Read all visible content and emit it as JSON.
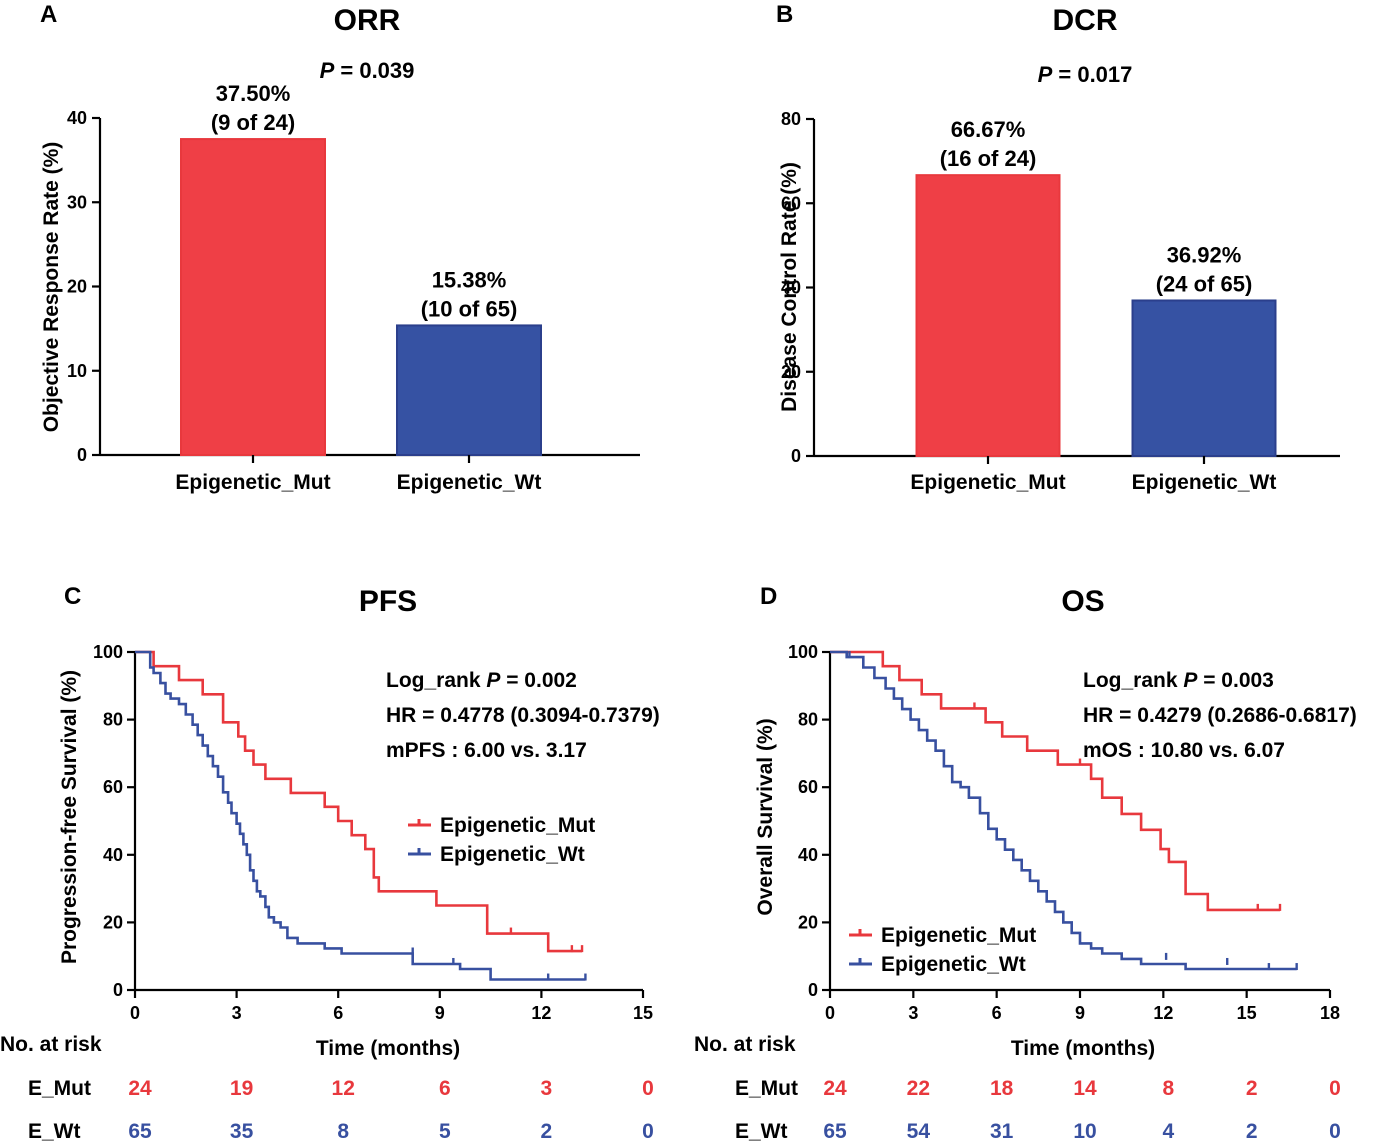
{
  "colors": {
    "mut": "#e8383d",
    "wt": "#3850a0",
    "mut_fill": "#ef3f46",
    "wt_fill": "#3652a3"
  },
  "chart_data": [
    {
      "id": "A",
      "panel": "A",
      "type": "bar",
      "title": "ORR",
      "p_label": "P",
      "p_value": " = 0.039",
      "ylabel": "Objective Response Rate (%)",
      "ylim": [
        0,
        40
      ],
      "yticks": [
        0,
        10,
        20,
        30,
        40
      ],
      "categories": [
        "Epigenetic_Mut",
        "Epigenetic_Wt"
      ],
      "values": [
        37.5,
        15.38
      ],
      "value_labels": [
        "37.50%",
        "15.38%"
      ],
      "count_labels": [
        "(9 of 24)",
        "(10 of 65)"
      ]
    },
    {
      "id": "B",
      "panel": "B",
      "type": "bar",
      "title": "DCR",
      "p_label": "P",
      "p_value": " = 0.017",
      "ylabel": "Disease Control Rate (%)",
      "ylim": [
        0,
        80
      ],
      "yticks": [
        0,
        20,
        40,
        60,
        80
      ],
      "categories": [
        "Epigenetic_Mut",
        "Epigenetic_Wt"
      ],
      "values": [
        66.67,
        36.92
      ],
      "value_labels": [
        "66.67%",
        "36.92%"
      ],
      "count_labels": [
        "(16 of 24)",
        "(24 of 65)"
      ]
    },
    {
      "id": "C",
      "panel": "C",
      "type": "line",
      "title": "PFS",
      "xlabel": "Time (months)",
      "ylabel": "Progression-free Survival (%)",
      "xlim": [
        0,
        15
      ],
      "ylim": [
        0,
        100
      ],
      "xticks": [
        0,
        3,
        6,
        9,
        12,
        15
      ],
      "yticks": [
        0,
        20,
        40,
        60,
        80,
        100
      ],
      "stats": {
        "logrank_prefix": "Log_rank ",
        "logrank_p": "P",
        "logrank_value": " = 0.002",
        "hr": "HR = 0.4778 (0.3094-0.7379)",
        "median": "mPFS : 6.00 vs. 3.17"
      },
      "series": [
        {
          "name": "Epigenetic_Mut",
          "color": "mut",
          "x": [
            0,
            0.55,
            0.55,
            1.3,
            1.3,
            2.0,
            2.0,
            2.6,
            2.6,
            3.05,
            3.05,
            3.25,
            3.25,
            3.5,
            3.5,
            3.85,
            3.85,
            4.6,
            4.6,
            5.6,
            5.6,
            6.0,
            6.0,
            6.4,
            6.4,
            6.8,
            6.8,
            7.05,
            7.05,
            7.2,
            7.2,
            8.9,
            8.9,
            10.4,
            10.4,
            12.2,
            12.2,
            13.2
          ],
          "y": [
            100,
            100,
            95.8,
            95.8,
            91.7,
            91.7,
            87.5,
            87.5,
            79.2,
            79.2,
            75,
            75,
            70.8,
            70.8,
            66.7,
            66.7,
            62.5,
            62.5,
            58.3,
            58.3,
            54.2,
            54.2,
            50,
            50,
            45.8,
            45.8,
            41.7,
            41.7,
            33.3,
            33.3,
            29.2,
            29.2,
            25,
            25,
            16.7,
            16.7,
            11.5,
            11.5
          ],
          "censor_x": [
            11.1,
            12.9,
            13.2
          ],
          "censor_y": [
            16.7,
            11.5,
            11.5
          ]
        },
        {
          "name": "Epigenetic_Wt",
          "color": "wt",
          "x": [
            0,
            0.45,
            0.45,
            0.55,
            0.55,
            0.75,
            0.75,
            0.9,
            0.9,
            1.05,
            1.05,
            1.3,
            1.3,
            1.5,
            1.5,
            1.7,
            1.7,
            1.85,
            1.85,
            2.0,
            2.0,
            2.15,
            2.15,
            2.3,
            2.3,
            2.45,
            2.45,
            2.6,
            2.6,
            2.75,
            2.75,
            2.85,
            2.85,
            3.0,
            3.0,
            3.1,
            3.1,
            3.2,
            3.2,
            3.3,
            3.3,
            3.4,
            3.4,
            3.5,
            3.5,
            3.6,
            3.6,
            3.7,
            3.7,
            3.85,
            3.85,
            3.95,
            3.95,
            4.1,
            4.1,
            4.3,
            4.3,
            4.5,
            4.5,
            4.8,
            4.8,
            5.6,
            5.6,
            6.1,
            6.1,
            8.2,
            8.2,
            9.6,
            9.6,
            10.5,
            10.5,
            13.3
          ],
          "y": [
            100,
            100,
            95.4,
            95.4,
            93.8,
            93.8,
            90.8,
            90.8,
            87.7,
            87.7,
            86.2,
            86.2,
            84.6,
            84.6,
            81.5,
            81.5,
            78.5,
            78.5,
            75.4,
            75.4,
            72.3,
            72.3,
            69.2,
            69.2,
            66.2,
            66.2,
            63.1,
            63.1,
            58.5,
            58.5,
            55.4,
            55.4,
            52.3,
            52.3,
            49.2,
            49.2,
            46.2,
            46.2,
            43.1,
            43.1,
            40,
            40,
            35.4,
            35.4,
            32.3,
            32.3,
            29.2,
            29.2,
            27.7,
            27.7,
            24.6,
            24.6,
            21.5,
            21.5,
            20,
            20,
            18.5,
            18.5,
            15.4,
            15.4,
            13.8,
            13.8,
            12.3,
            12.3,
            10.8,
            10.8,
            7.7,
            7.7,
            6.2,
            6.2,
            3.1,
            3.1
          ],
          "censor_x": [
            8.2,
            9.4,
            12.2,
            13.3
          ],
          "censor_y": [
            10.8,
            7.7,
            3.1,
            3.1
          ]
        }
      ],
      "legend": [
        "Epigenetic_Mut",
        "Epigenetic_Wt"
      ],
      "risk_table": {
        "title": "No. at risk",
        "rows": [
          {
            "label": "E_Mut",
            "color": "mut",
            "values": [
              "24",
              "19",
              "12",
              "6",
              "3",
              "0"
            ]
          },
          {
            "label": "E_Wt",
            "color": "wt",
            "values": [
              "65",
              "35",
              "8",
              "5",
              "2",
              "0"
            ]
          }
        ]
      }
    },
    {
      "id": "D",
      "panel": "D",
      "type": "line",
      "title": "OS",
      "xlabel": "Time (months)",
      "ylabel": "Overall Survival (%)",
      "xlim": [
        0,
        18
      ],
      "ylim": [
        0,
        100
      ],
      "xticks": [
        0,
        3,
        6,
        9,
        12,
        15,
        18
      ],
      "yticks": [
        0,
        20,
        40,
        60,
        80,
        100
      ],
      "stats": {
        "logrank_prefix": "Log_rank ",
        "logrank_p": "P",
        "logrank_value": " = 0.003",
        "hr": "HR = 0.4279 (0.2686-0.6817)",
        "median": "mOS : 10.80 vs. 6.07"
      },
      "series": [
        {
          "name": "Epigenetic_Mut",
          "color": "mut",
          "x": [
            0,
            1.9,
            1.9,
            2.5,
            2.5,
            3.3,
            3.3,
            4.0,
            4.0,
            5.6,
            5.6,
            6.2,
            6.2,
            7.1,
            7.1,
            8.2,
            8.2,
            9.4,
            9.4,
            9.8,
            9.8,
            10.5,
            10.5,
            11.2,
            11.2,
            11.9,
            11.9,
            12.2,
            12.2,
            12.8,
            12.8,
            13.6,
            13.6,
            16.2
          ],
          "y": [
            100,
            100,
            95.8,
            95.8,
            91.7,
            91.7,
            87.5,
            87.5,
            83.3,
            83.3,
            79.2,
            79.2,
            75,
            75,
            70.8,
            70.8,
            66.7,
            66.7,
            62.5,
            62.5,
            56.9,
            56.9,
            52.1,
            52.1,
            47.4,
            47.4,
            41.7,
            41.7,
            37.9,
            37.9,
            28.4,
            28.4,
            23.7,
            23.7
          ],
          "censor_x": [
            5.2,
            9.0,
            15.4,
            16.2
          ],
          "censor_y": [
            83.3,
            66.7,
            23.7,
            23.7
          ]
        },
        {
          "name": "Epigenetic_Wt",
          "color": "wt",
          "x": [
            0,
            0.6,
            0.6,
            1.2,
            1.2,
            1.6,
            1.6,
            2.0,
            2.0,
            2.3,
            2.3,
            2.6,
            2.6,
            2.9,
            2.9,
            3.2,
            3.2,
            3.5,
            3.5,
            3.8,
            3.8,
            4.1,
            4.1,
            4.4,
            4.4,
            4.7,
            4.7,
            5.0,
            5.0,
            5.4,
            5.4,
            5.7,
            5.7,
            6.0,
            6.0,
            6.3,
            6.3,
            6.6,
            6.6,
            6.9,
            6.9,
            7.2,
            7.2,
            7.5,
            7.5,
            7.8,
            7.8,
            8.1,
            8.1,
            8.4,
            8.4,
            8.7,
            8.7,
            9.0,
            9.0,
            9.4,
            9.4,
            9.8,
            9.8,
            10.5,
            10.5,
            11.2,
            11.2,
            12.8,
            12.8,
            16.8
          ],
          "y": [
            100,
            100,
            98.5,
            98.5,
            95.4,
            95.4,
            92.3,
            92.3,
            89.2,
            89.2,
            86.2,
            86.2,
            83.1,
            83.1,
            80,
            80,
            76.9,
            76.9,
            73.8,
            73.8,
            70.8,
            70.8,
            66.2,
            66.2,
            61.5,
            61.5,
            60,
            60,
            56.9,
            56.9,
            52.3,
            52.3,
            47.7,
            47.7,
            44.6,
            44.6,
            41.5,
            41.5,
            38.5,
            38.5,
            35.4,
            35.4,
            32.3,
            32.3,
            29.2,
            29.2,
            26.2,
            26.2,
            23.1,
            23.1,
            20,
            20,
            16.9,
            16.9,
            13.8,
            13.8,
            12.3,
            12.3,
            10.8,
            10.8,
            9.2,
            9.2,
            7.7,
            7.7,
            6.2,
            6.2
          ],
          "censor_x": [
            0.7,
            12.1,
            14.3,
            15.8,
            16.8
          ],
          "censor_y": [
            98.5,
            9.2,
            7.7,
            6.2,
            6.2
          ]
        }
      ],
      "legend": [
        "Epigenetic_Mut",
        "Epigenetic_Wt"
      ],
      "risk_table": {
        "title": "No. at risk",
        "rows": [
          {
            "label": "E_Mut",
            "color": "mut",
            "values": [
              "24",
              "22",
              "18",
              "14",
              "8",
              "2",
              "0"
            ]
          },
          {
            "label": "E_Wt",
            "color": "wt",
            "values": [
              "65",
              "54",
              "31",
              "10",
              "4",
              "2",
              "0"
            ]
          }
        ]
      }
    }
  ]
}
